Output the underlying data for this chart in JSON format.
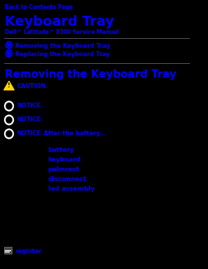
{
  "bg_color": "#000000",
  "link_color": "#0000FF",
  "gray_color": "#808080",
  "white_color": "#FFFFFF",
  "yellow_color": "#FFD700",
  "back_link": "Back to Contents Page",
  "title": "Keyboard Tray",
  "subtitle": "Dell™ Latitude™ X300 Service Manual",
  "toc_items": [
    "Removing the Keyboard Tray",
    "Replacing the Keyboard Tray"
  ],
  "section_title": "Removing the Keyboard Tray",
  "caution_text": "CAUTION.",
  "notice1_text": "NOTICE.",
  "notice2_text": "NOTICE.",
  "notice3_text": "NOTICE.",
  "notice3_link": "After the battery...",
  "list_items": [
    "battery",
    "keyboard",
    "palmrest",
    "disconnect",
    "led assembly"
  ],
  "bottom_link": "register"
}
